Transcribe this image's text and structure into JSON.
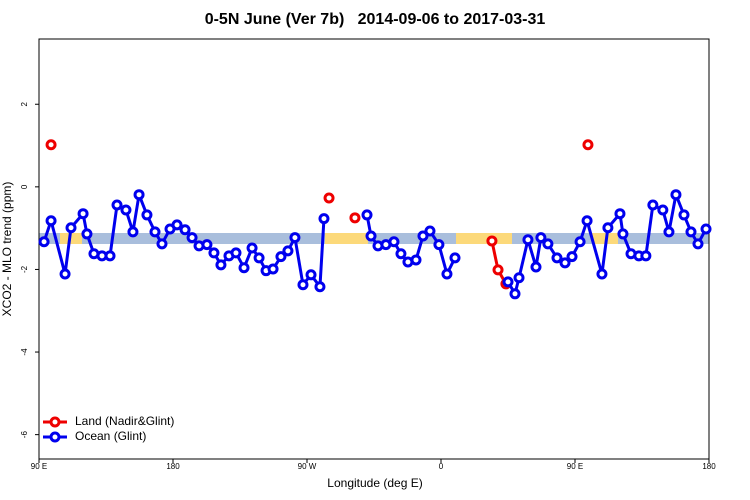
{
  "chart_data": {
    "type": "line",
    "title": "0-5N June (Ver 7b)   2014-09-06 to 2017-03-31",
    "x_label": "Longitude (deg E)",
    "y_label": "XCO2 - MLO trend (ppm)",
    "xlim": [
      90,
      540
    ],
    "xticks": [
      {
        "value": 90,
        "label": "90 E"
      },
      180,
      {
        "value": 270,
        "label": "90 W"
      },
      {
        "value": 360,
        "label": "0"
      },
      {
        "value": 450,
        "label": "90 E"
      },
      {
        "value": 540,
        "label": "180"
      }
    ],
    "ylim": [
      -6.59,
      3.58
    ],
    "yticks": [
      -6,
      -4,
      -2,
      0,
      2
    ],
    "legend": "bottom-left",
    "series": [
      {
        "name": "Land (Nadir&Glint)",
        "color": "#ee0000",
        "x": [
          98.1,
          null,
          284.8,
          null,
          302.2,
          null,
          394.2,
          398.3,
          403.6,
          null,
          458.7
        ],
        "values": [
          1.02,
          null,
          -0.27,
          null,
          -0.75,
          null,
          -1.31,
          -2.01,
          -2.35,
          null,
          1.02
        ]
      },
      {
        "name": "Ocean (Glint)",
        "color": "#0000ee",
        "x": [
          93.4,
          98.1,
          107.5,
          111.5,
          119.6,
          122.2,
          126.9,
          132.3,
          137.7,
          142.4,
          148.4,
          153.1,
          157.2,
          162.5,
          167.9,
          172.6,
          178.0,
          182.7,
          188.1,
          192.8,
          197.5,
          202.8,
          207.5,
          212.2,
          217.6,
          222.3,
          227.7,
          233.1,
          237.8,
          242.5,
          247.2,
          252.5,
          257.2,
          261.9,
          267.3,
          272.7,
          278.7,
          281.4,
          null,
          310.3,
          313.0,
          317.7,
          323.0,
          328.4,
          333.1,
          337.8,
          343.2,
          347.9,
          352.6,
          358.6,
          364.0,
          369.4,
          null,
          405.0,
          409.7,
          412.4,
          418.4,
          423.8,
          427.1,
          431.8,
          437.9,
          443.3,
          448.0,
          453.4,
          458.1,
          468.1,
          472.1,
          480.2,
          482.2,
          487.6,
          492.9,
          497.6,
          502.3,
          509.0,
          513.1,
          517.8,
          523.2,
          527.9,
          532.6,
          538.0
        ],
        "values": [
          -1.33,
          -0.82,
          -2.11,
          -0.99,
          -0.65,
          -1.14,
          -1.62,
          -1.67,
          -1.67,
          -0.44,
          -0.56,
          -1.09,
          -0.19,
          -0.68,
          -1.09,
          -1.38,
          -1.02,
          -0.92,
          -1.04,
          -1.23,
          -1.43,
          -1.4,
          -1.6,
          -1.89,
          -1.67,
          -1.6,
          -1.96,
          -1.48,
          -1.72,
          -2.03,
          -1.99,
          -1.69,
          -1.55,
          -1.23,
          -2.37,
          -2.13,
          -2.42,
          -0.77,
          null,
          -0.68,
          -1.19,
          -1.43,
          -1.4,
          -1.33,
          -1.62,
          -1.82,
          -1.77,
          -1.19,
          -1.07,
          -1.4,
          -2.11,
          -1.72,
          null,
          -2.3,
          -2.59,
          -2.2,
          -1.28,
          -1.94,
          -1.23,
          -1.38,
          -1.72,
          -1.84,
          -1.69,
          -1.33,
          -0.82,
          -2.11,
          -0.99,
          -0.65,
          -1.14,
          -1.62,
          -1.67,
          -1.67,
          -0.44,
          -0.56,
          -1.09,
          -0.19,
          -0.68,
          -1.09,
          -1.38,
          -1.02
        ]
      }
    ]
  }
}
